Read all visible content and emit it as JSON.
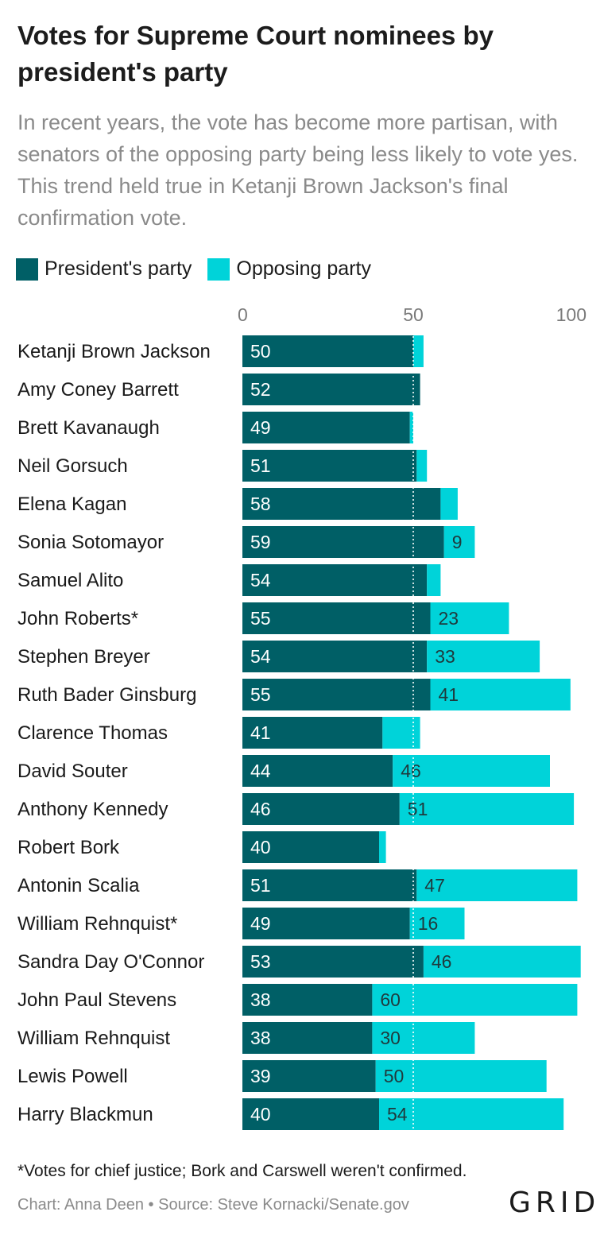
{
  "title": "Votes for Supreme Court nominees by president's party",
  "subtitle": "In recent years, the vote has become more partisan, with senators of the opposing party being less likely to vote yes. This trend held true in Ketanji Brown Jackson's final confirmation vote.",
  "legend": [
    {
      "label": "President's party",
      "color": "#005f66"
    },
    {
      "label": "Opposing party",
      "color": "#00d3d9"
    }
  ],
  "footnote": "*Votes for chief justice; Bork and Carswell weren't confirmed.",
  "source": "Chart: Anna Deen • Source: Steve Kornacki/Senate.gov",
  "logo": "GRID",
  "chart_data": {
    "type": "bar",
    "orientation": "horizontal",
    "stacked": true,
    "xlim": [
      0,
      100
    ],
    "x_ticks": [
      0,
      50,
      100
    ],
    "reference_line": 50,
    "grid": false,
    "legend_position": "top-left",
    "categories": [
      "Ketanji Brown Jackson",
      "Amy Coney Barrett",
      "Brett Kavanaugh",
      "Neil Gorsuch",
      "Elena Kagan",
      "Sonia Sotomayor",
      "Samuel Alito",
      "John Roberts*",
      "Stephen Breyer",
      "Ruth Bader Ginsburg",
      "Clarence Thomas",
      "David Souter",
      "Anthony Kennedy",
      "Robert Bork",
      "Antonin Scalia",
      "William Rehnquist*",
      "Sandra Day O'Connor",
      "John Paul Stevens",
      "William Rehnquist",
      "Lewis Powell",
      "Harry Blackmun"
    ],
    "series": [
      {
        "name": "President's party",
        "color": "#005f66",
        "values": [
          50,
          52,
          49,
          51,
          58,
          59,
          54,
          55,
          54,
          55,
          41,
          44,
          46,
          40,
          51,
          49,
          53,
          38,
          38,
          39,
          40
        ],
        "labels": [
          "50",
          "52",
          "49",
          "51",
          "58",
          "59",
          "54",
          "55",
          "54",
          "55",
          "41",
          "44",
          "46",
          "40",
          "51",
          "49",
          "53",
          "38",
          "38",
          "39",
          "40"
        ]
      },
      {
        "name": "Opposing party",
        "color": "#00d3d9",
        "values": [
          3,
          0,
          1,
          3,
          5,
          9,
          4,
          23,
          33,
          41,
          11,
          46,
          51,
          2,
          47,
          16,
          46,
          60,
          30,
          50,
          54
        ],
        "labels": [
          "",
          "",
          "",
          "",
          "",
          "9",
          "",
          "23",
          "33",
          "41",
          "",
          "46",
          "51",
          "",
          "47",
          "16",
          "46",
          "60",
          "30",
          "50",
          "54"
        ]
      }
    ]
  }
}
